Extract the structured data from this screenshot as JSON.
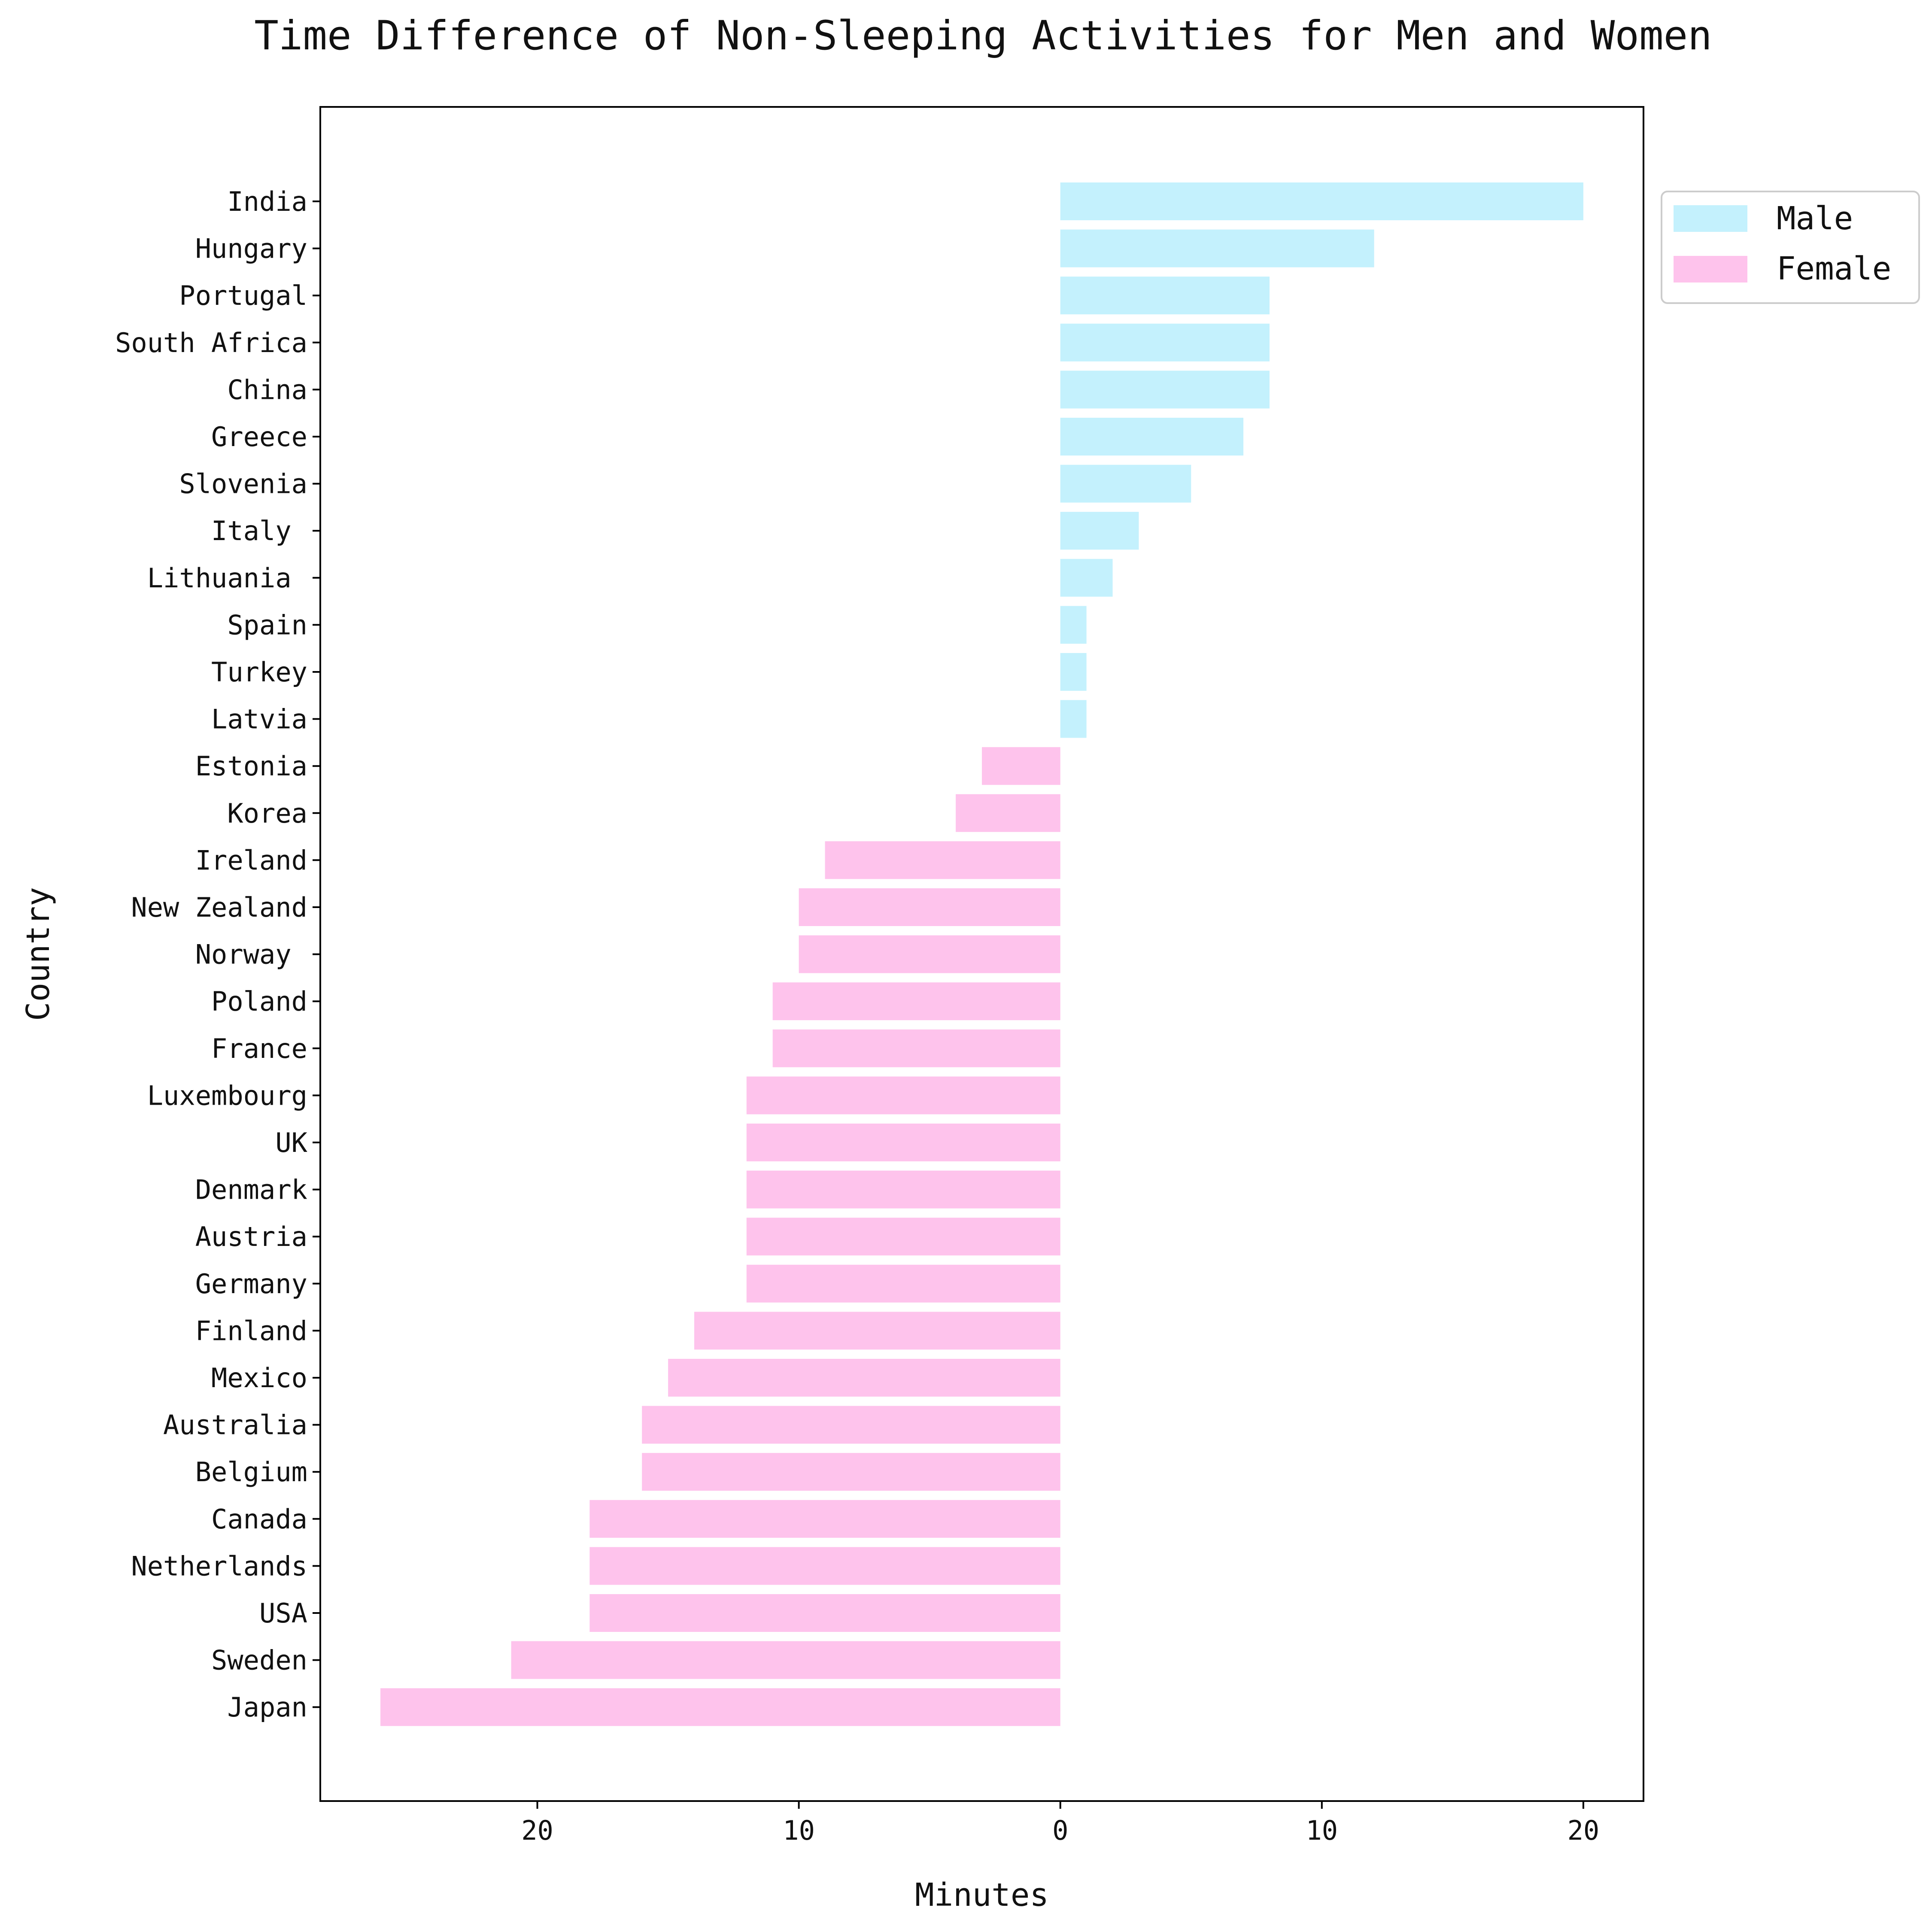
{
  "chart_data": {
    "type": "bar",
    "orientation": "horizontal",
    "title": "Time Difference of Non-Sleeping Activities for Men and Women",
    "xlabel": "Minutes",
    "ylabel": "Country",
    "xlim": [
      -28.3,
      22.3
    ],
    "x_ticks": [
      -20,
      -10,
      0,
      10,
      20
    ],
    "x_tick_labels": [
      "20",
      "10",
      "0",
      "10",
      "20"
    ],
    "grid": false,
    "legend_position": "outside-top-right",
    "colors": {
      "male": "#c4f1fd",
      "female": "#fec3ec",
      "axis": "#000000",
      "text": "#111111"
    },
    "legend": [
      {
        "key": "male",
        "label": "Male"
      },
      {
        "key": "female",
        "label": "Female"
      }
    ],
    "categories": [
      "India",
      "Hungary",
      "Portugal",
      "South Africa",
      "China",
      "Greece",
      "Slovenia",
      "Italy ",
      "Lithuania ",
      "Spain",
      "Turkey",
      "Latvia",
      "Estonia",
      "Korea",
      "Ireland",
      "New Zealand",
      "Norway ",
      "Poland",
      "France",
      "Luxembourg",
      "UK",
      "Denmark",
      "Austria",
      "Germany",
      "Finland",
      "Mexico",
      "Australia",
      "Belgium",
      "Canada",
      "Netherlands",
      "USA",
      "Sweden",
      "Japan"
    ],
    "series": [
      {
        "name": "Male",
        "key": "male",
        "values": [
          20,
          12,
          8,
          8,
          8,
          7,
          5,
          3,
          2,
          1,
          1,
          1,
          0,
          0,
          0,
          0,
          0,
          0,
          0,
          0,
          0,
          0,
          0,
          0,
          0,
          0,
          0,
          0,
          0,
          0,
          0,
          0,
          0
        ]
      },
      {
        "name": "Female",
        "key": "female",
        "values": [
          0,
          0,
          0,
          0,
          0,
          0,
          0,
          0,
          0,
          0,
          0,
          0,
          -3,
          -4,
          -9,
          -10,
          -10,
          -11,
          -11,
          -12,
          -12,
          -12,
          -12,
          -12,
          -14,
          -15,
          -16,
          -16,
          -18,
          -18,
          -18,
          -21,
          -26
        ]
      }
    ]
  }
}
